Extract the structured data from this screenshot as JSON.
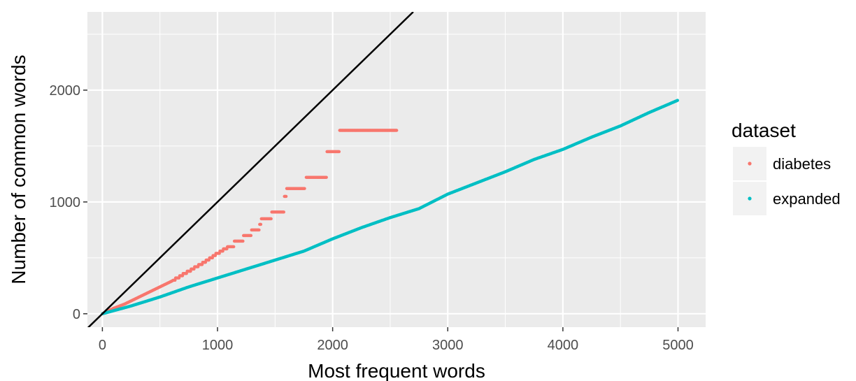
{
  "chart_data": {
    "type": "scatter",
    "title": "",
    "xlabel": "Most frequent words",
    "ylabel": "Number of common words",
    "xlim": [
      -130,
      5240
    ],
    "ylim": [
      -120,
      2700
    ],
    "xticks": [
      0,
      1000,
      2000,
      3000,
      4000,
      5000
    ],
    "yticks": [
      0,
      1000,
      2000
    ],
    "grid": true,
    "panel_background": "#ebebeb",
    "legend": {
      "title": "dataset",
      "position": "right"
    },
    "reference_line": {
      "slope": 1,
      "intercept": 0,
      "color": "#000000"
    },
    "series": [
      {
        "name": "diabetes",
        "color": "#f8766d",
        "x_max": 2560,
        "profile": [
          [
            0,
            0
          ],
          [
            100,
            50
          ],
          [
            200,
            90
          ],
          [
            300,
            140
          ],
          [
            400,
            190
          ],
          [
            500,
            240
          ],
          [
            600,
            290
          ],
          [
            700,
            350
          ],
          [
            800,
            410
          ],
          [
            900,
            470
          ],
          [
            1000,
            540
          ],
          [
            1100,
            600
          ],
          [
            1200,
            660
          ],
          [
            1300,
            730
          ],
          [
            1400,
            800
          ]
        ],
        "plateaus": [
          [
            1380,
            1470,
            850
          ],
          [
            1470,
            1580,
            910
          ],
          [
            1580,
            1600,
            1050
          ],
          [
            1600,
            1760,
            1120
          ],
          [
            1770,
            1950,
            1220
          ],
          [
            1950,
            2060,
            1450
          ],
          [
            2060,
            2560,
            1640
          ]
        ]
      },
      {
        "name": "expanded",
        "color": "#00bfc4",
        "x_max": 5000,
        "profile": [
          [
            0,
            0
          ],
          [
            250,
            70
          ],
          [
            500,
            150
          ],
          [
            750,
            240
          ],
          [
            1000,
            320
          ],
          [
            1250,
            400
          ],
          [
            1500,
            480
          ],
          [
            1750,
            560
          ],
          [
            2000,
            670
          ],
          [
            2250,
            770
          ],
          [
            2500,
            860
          ],
          [
            2750,
            940
          ],
          [
            3000,
            1070
          ],
          [
            3250,
            1170
          ],
          [
            3500,
            1270
          ],
          [
            3750,
            1380
          ],
          [
            4000,
            1470
          ],
          [
            4250,
            1580
          ],
          [
            4500,
            1680
          ],
          [
            4750,
            1800
          ],
          [
            5000,
            1910
          ]
        ]
      }
    ]
  }
}
